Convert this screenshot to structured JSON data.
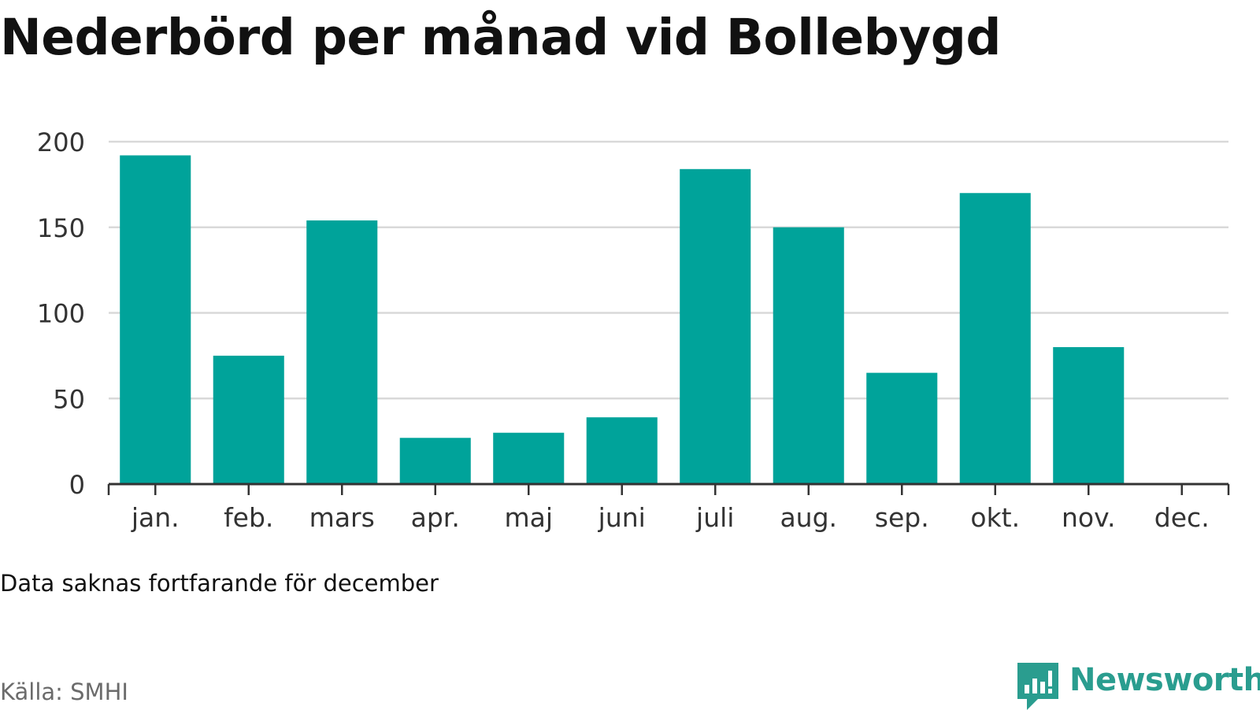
{
  "chart_data": {
    "type": "bar",
    "title": "Nederbörd per månad vid Bollebygd",
    "xlabel": "",
    "ylabel": "",
    "categories": [
      "jan.",
      "feb.",
      "mars",
      "apr.",
      "maj",
      "juni",
      "juli",
      "aug.",
      "sep.",
      "okt.",
      "nov.",
      "dec."
    ],
    "values": [
      192,
      75,
      154,
      27,
      30,
      39,
      184,
      150,
      65,
      170,
      80,
      null
    ],
    "ylim": [
      0,
      200
    ],
    "yticks": [
      0,
      50,
      100,
      150,
      200
    ],
    "grid": true,
    "legend": "none",
    "bar_color": "#00a39a",
    "grid_color": "#d9d9d9",
    "axis_color": "#333333"
  },
  "note": "Data saknas fortfarande för december",
  "source": "Källa: SMHI",
  "brand": {
    "name": "Newsworthy",
    "icon": "newsworthy-logo-icon",
    "color": "#2a9d8f"
  }
}
